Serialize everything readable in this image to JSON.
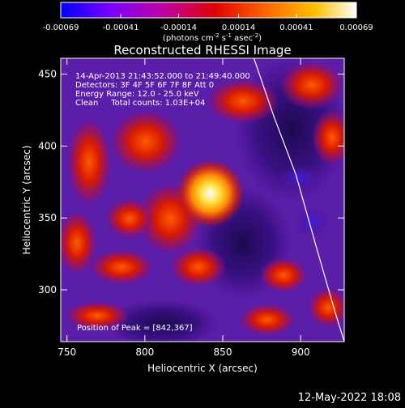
{
  "chart_data": {
    "type": "heatmap",
    "title": "Reconstructed RHESSI Image",
    "xlabel": "Heliocentric X (arcsec)",
    "ylabel": "Heliocentric Y (arcsec)",
    "xlim": [
      746,
      928
    ],
    "ylim": [
      264,
      461
    ],
    "x_ticks": [
      750,
      800,
      850,
      900
    ],
    "y_ticks": [
      300,
      350,
      400,
      450
    ],
    "colorbar": {
      "ticks": [
        "-0.00069",
        "-0.00041",
        "-0.00014",
        "0.00014",
        "0.00041",
        "0.00069"
      ],
      "tick_values": [
        -0.00069,
        -0.00041,
        -0.00014,
        0.00014,
        0.00041,
        0.00069
      ],
      "range": [
        -0.00069,
        0.00069
      ],
      "units_label": "(photons cm^-2 s^-1 asec^-2)",
      "colors": [
        "#0000ff",
        "#7a00ff",
        "#c000a0",
        "#e00000",
        "#ff6a00",
        "#ffc000",
        "#ffffff"
      ]
    },
    "annotations": [
      "14-Apr-2013 21:43:52.000 to 21:49:40.000",
      "Detectors: 3F 4F 5F 6F 7F 8F Att 0",
      "Energy Range: 12.0 - 25.0 keV",
      "Clean     Total counts: 1.03E+04"
    ],
    "peak": {
      "label": "Position of Peak = [842,367]",
      "x": 842,
      "y": 367
    },
    "limb_curve": [
      [
        870,
        461
      ],
      [
        883,
        420
      ],
      [
        897,
        380
      ],
      [
        910,
        330
      ],
      [
        922,
        285
      ],
      [
        928,
        264
      ]
    ]
  },
  "footer": {
    "date": "12-May-2022 18:08"
  }
}
